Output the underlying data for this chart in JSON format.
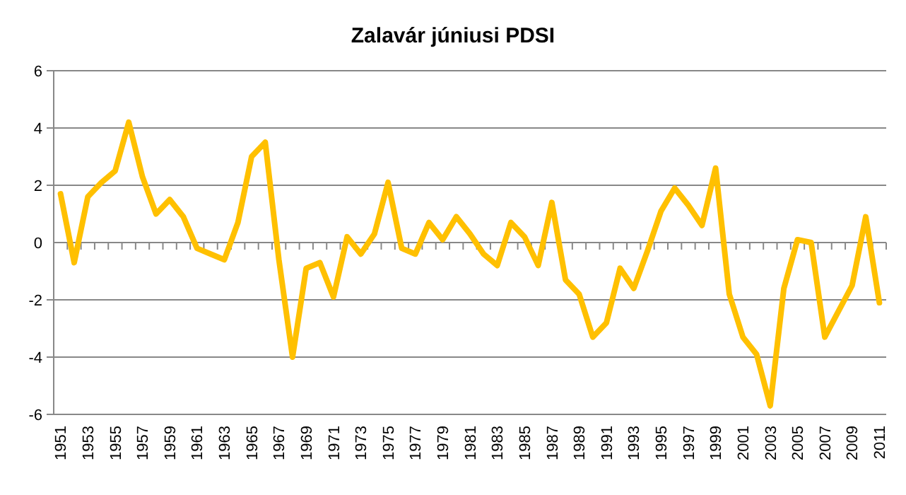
{
  "chart_data": {
    "type": "line",
    "title": "Zalavár júniusi PDSI",
    "categories": [
      "1951",
      null,
      "1953",
      null,
      "1955",
      null,
      "1957",
      null,
      "1959",
      null,
      "1961",
      null,
      "1963",
      null,
      "1965",
      null,
      "1967",
      null,
      "1969",
      null,
      "1971",
      null,
      "1973",
      null,
      "1975",
      null,
      "1977",
      null,
      "1979",
      null,
      "1981",
      null,
      "1983",
      null,
      "1985",
      null,
      "1987",
      null,
      "1989",
      null,
      "1991",
      null,
      "1993",
      null,
      "1995",
      null,
      "1997",
      null,
      "1999",
      null,
      "2001",
      null,
      "2003",
      null,
      "2005",
      null,
      "2007",
      null,
      "2009",
      null,
      "2011"
    ],
    "series": [
      {
        "color": "#ffc000",
        "values": [
          1.7,
          -0.7,
          1.6,
          2.1,
          2.5,
          4.2,
          2.3,
          1.0,
          1.5,
          0.9,
          -0.2,
          -0.4,
          -0.6,
          0.7,
          3.0,
          3.5,
          -0.6,
          -4.0,
          -0.9,
          -0.7,
          -1.9,
          0.2,
          -0.4,
          0.3,
          2.1,
          -0.2,
          -0.4,
          0.7,
          0.1,
          0.9,
          0.3,
          -0.4,
          -0.8,
          0.7,
          0.2,
          -0.8,
          1.4,
          -1.3,
          -1.8,
          -3.3,
          -2.8,
          -0.9,
          -1.6,
          -0.3,
          1.1,
          1.9,
          1.3,
          0.6,
          2.6,
          -1.8,
          -3.3,
          -3.9,
          -5.7,
          -1.6,
          0.1,
          0.0,
          -3.3,
          -2.4,
          -1.5,
          0.9,
          -2.1
        ]
      }
    ],
    "ylim": [
      -6,
      6
    ],
    "yticks": [
      -6,
      -4,
      -2,
      0,
      2,
      4,
      6
    ],
    "grid": "y",
    "marker": "none",
    "line_style": "solid"
  }
}
